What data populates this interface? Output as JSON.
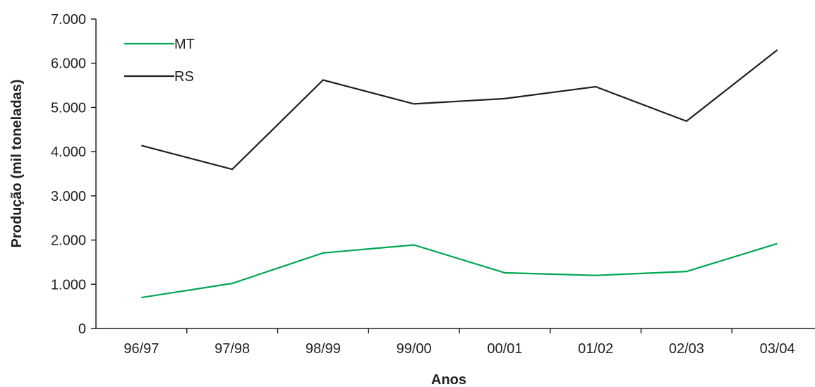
{
  "chart_data": {
    "type": "line",
    "title": "",
    "xlabel": "Anos",
    "ylabel": "Produção (mil toneladas)",
    "categories": [
      "96/97",
      "97/98",
      "98/99",
      "99/00",
      "00/01",
      "01/02",
      "02/03",
      "03/04"
    ],
    "ylim": [
      0,
      7000
    ],
    "yticks": [
      0,
      1000,
      2000,
      3000,
      4000,
      5000,
      6000,
      7000
    ],
    "ytick_labels": [
      "0",
      "1.000",
      "2.000",
      "3.000",
      "4.000",
      "5.000",
      "6.000",
      "7.000"
    ],
    "grid": false,
    "legend_position": "top-left",
    "series": [
      {
        "name": "MT",
        "color": "#00a651",
        "values": [
          700,
          1020,
          1710,
          1890,
          1260,
          1200,
          1290,
          1920
        ]
      },
      {
        "name": "RS",
        "color": "#231f20",
        "values": [
          4140,
          3600,
          5620,
          5080,
          5200,
          5470,
          4690,
          6300
        ]
      }
    ]
  }
}
